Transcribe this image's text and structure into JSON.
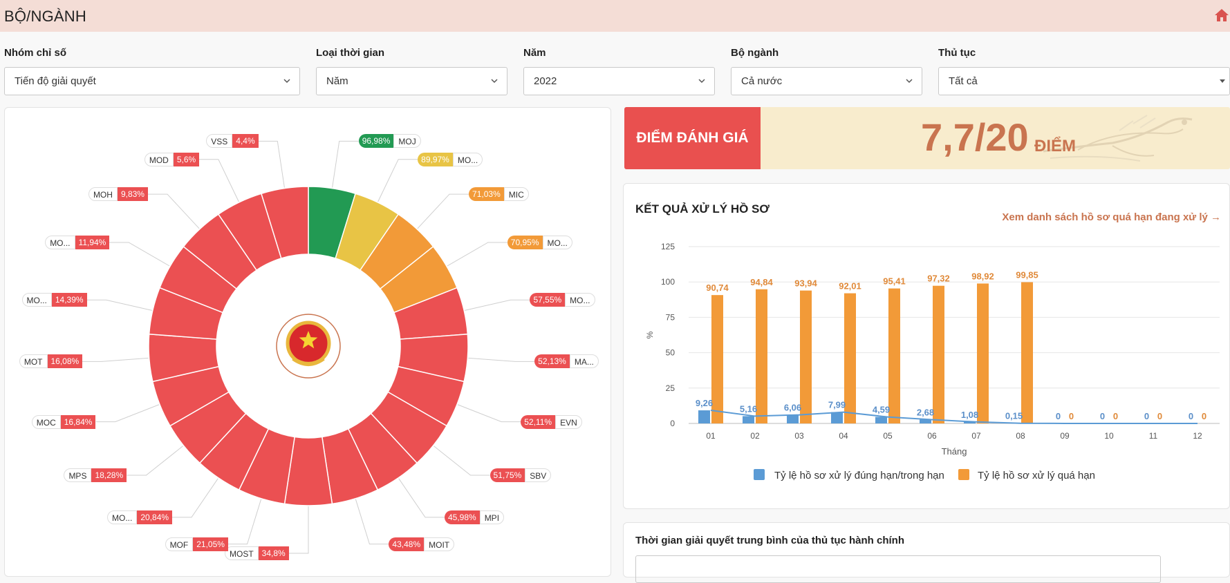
{
  "header": {
    "title": "BỘ/NGÀNH",
    "home_icon": "home-icon"
  },
  "filters": [
    {
      "label": "Nhóm chỉ số",
      "value": "Tiến độ giải quyết"
    },
    {
      "label": "Loại thời gian",
      "value": "Năm"
    },
    {
      "label": "Năm",
      "value": "2022"
    },
    {
      "label": "Bộ ngành",
      "value": "Cả nước"
    },
    {
      "label": "Thủ tục",
      "value": "Tất cả"
    }
  ],
  "score": {
    "label": "ĐIỂM ĐÁNH GIÁ",
    "value": "7,7/20",
    "unit": "ĐIỂM"
  },
  "result": {
    "title": "KẾT QUẢ XỬ LÝ HỒ SƠ",
    "link": "Xem danh sách hồ sơ quá hạn đang xử lý →"
  },
  "time_section": {
    "title": "Thời gian giải quyết trung bình của thủ tục hành chính"
  },
  "colors": {
    "green": "#229a53",
    "yellow": "#e8c445",
    "orange": "#f29a38",
    "red": "#eb5052",
    "blue": "#5b9bd5",
    "bar_orange": "#f29a38"
  },
  "chart_data": [
    {
      "type": "pie",
      "variant": "donut",
      "title": "",
      "slices": [
        {
          "code": "MOJ",
          "label": "96,98%",
          "value": 96.98,
          "color": "green"
        },
        {
          "code": "MO...",
          "label": "89,97%",
          "value": 89.97,
          "color": "yellow"
        },
        {
          "code": "MIC",
          "label": "71,03%",
          "value": 71.03,
          "color": "orange"
        },
        {
          "code": "MO...",
          "label": "70,95%",
          "value": 70.95,
          "color": "orange"
        },
        {
          "code": "MO...",
          "label": "57,55%",
          "value": 57.55,
          "color": "red"
        },
        {
          "code": "MA...",
          "label": "52,13%",
          "value": 52.13,
          "color": "red"
        },
        {
          "code": "EVN",
          "label": "52,11%",
          "value": 52.11,
          "color": "red"
        },
        {
          "code": "SBV",
          "label": "51,75%",
          "value": 51.75,
          "color": "red"
        },
        {
          "code": "MPI",
          "label": "45,98%",
          "value": 45.98,
          "color": "red"
        },
        {
          "code": "MOIT",
          "label": "43,48%",
          "value": 43.48,
          "color": "red"
        },
        {
          "code": "MOST",
          "label": "34,8%",
          "value": 34.8,
          "color": "red"
        },
        {
          "code": "MOF",
          "label": "21,05%",
          "value": 21.05,
          "color": "red"
        },
        {
          "code": "MO...",
          "label": "20,84%",
          "value": 20.84,
          "color": "red"
        },
        {
          "code": "MPS",
          "label": "18,28%",
          "value": 18.28,
          "color": "red"
        },
        {
          "code": "MOC",
          "label": "16,84%",
          "value": 16.84,
          "color": "red"
        },
        {
          "code": "MOT",
          "label": "16,08%",
          "value": 16.08,
          "color": "red"
        },
        {
          "code": "MO...",
          "label": "14,39%",
          "value": 14.39,
          "color": "red"
        },
        {
          "code": "MO...",
          "label": "11,94%",
          "value": 11.94,
          "color": "red"
        },
        {
          "code": "MOH",
          "label": "9,83%",
          "value": 9.83,
          "color": "red"
        },
        {
          "code": "MOD",
          "label": "5,6%",
          "value": 5.6,
          "color": "red"
        },
        {
          "code": "VSS",
          "label": "4,4%",
          "value": 4.4,
          "color": "red"
        }
      ]
    },
    {
      "type": "bar",
      "title": "",
      "xlabel": "Tháng",
      "ylabel": "%",
      "ylim": [
        0,
        125
      ],
      "yticks": [
        "0",
        "25",
        "50",
        "75",
        "100",
        "125"
      ],
      "categories": [
        "01",
        "02",
        "03",
        "04",
        "05",
        "06",
        "07",
        "08",
        "09",
        "10",
        "11",
        "12"
      ],
      "series": [
        {
          "name": "Tỷ lệ hồ sơ xử lý đúng hạn/trong hạn",
          "color": "blue",
          "values": [
            9.26,
            5.16,
            6.06,
            7.99,
            4.59,
            2.68,
            1.08,
            0.15,
            0,
            0,
            0,
            0
          ],
          "labels": [
            "9,26",
            "5,16",
            "6,06",
            "7,99",
            "4,59",
            "2,68",
            "1,08",
            "0,15",
            "0",
            "0",
            "0",
            "0"
          ],
          "line": true
        },
        {
          "name": "Tỷ lệ hồ sơ xử lý quá hạn",
          "color": "bar_orange",
          "values": [
            90.74,
            94.84,
            93.94,
            92.01,
            95.41,
            97.32,
            98.92,
            99.85,
            0,
            0,
            0,
            0
          ],
          "labels": [
            "90,74",
            "94,84",
            "93,94",
            "92,01",
            "95,41",
            "97,32",
            "98,92",
            "99,85",
            "0",
            "0",
            "0",
            "0"
          ]
        }
      ]
    }
  ]
}
